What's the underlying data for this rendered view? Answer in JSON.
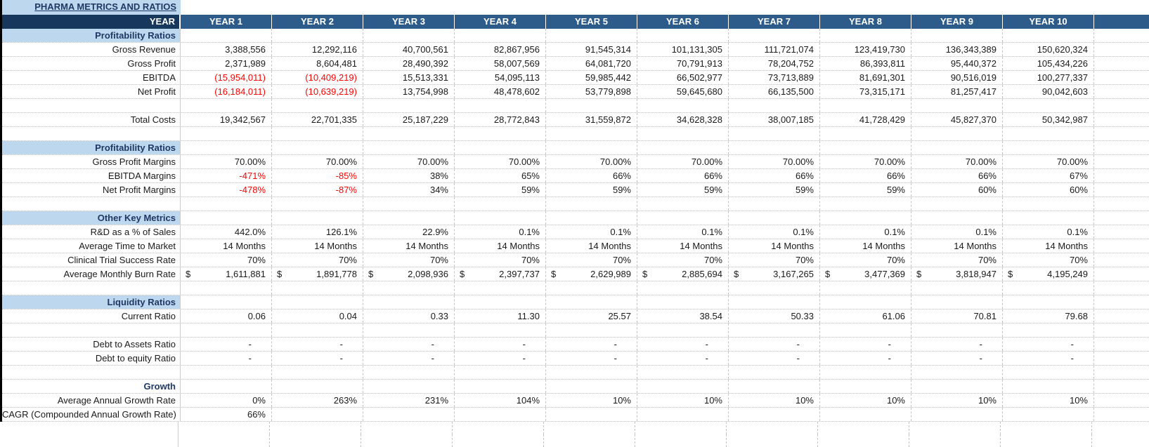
{
  "title": "PHARMA METRICS AND RATIOS",
  "currency_symbol": "$",
  "colors": {
    "header_label_bg": "#17375D",
    "header_year_bg": "#2E5C8A",
    "section_bg": "#BDD7EE",
    "negative_text": "#FF0000",
    "title_text": "#1F3864"
  },
  "header": {
    "label": "YEAR",
    "years": [
      "YEAR 1",
      "YEAR 2",
      "YEAR 3",
      "YEAR 4",
      "YEAR 5",
      "YEAR 6",
      "YEAR 7",
      "YEAR 8",
      "YEAR 9",
      "YEAR 10"
    ]
  },
  "rows": [
    {
      "type": "section",
      "label": "Profitability Ratios"
    },
    {
      "type": "data",
      "label": "Gross Revenue",
      "values": [
        "3,388,556",
        "12,292,116",
        "40,700,561",
        "82,867,956",
        "91,545,314",
        "101,131,305",
        "111,721,074",
        "123,419,730",
        "136,343,389",
        "150,620,324"
      ]
    },
    {
      "type": "data",
      "label": "Gross Profit",
      "values": [
        "2,371,989",
        "8,604,481",
        "28,490,392",
        "58,007,569",
        "64,081,720",
        "70,791,913",
        "78,204,752",
        "86,393,811",
        "95,440,372",
        "105,434,226"
      ]
    },
    {
      "type": "data",
      "label": "EBITDA",
      "values": [
        "(15,954,011)",
        "(10,409,219)",
        "15,513,331",
        "54,095,113",
        "59,985,442",
        "66,502,977",
        "73,713,889",
        "81,691,301",
        "90,516,019",
        "100,277,337"
      ],
      "red": [
        0,
        1
      ]
    },
    {
      "type": "data",
      "label": "Net Profit",
      "values": [
        "(16,184,011)",
        "(10,639,219)",
        "13,754,998",
        "48,478,602",
        "53,779,898",
        "59,645,680",
        "66,135,500",
        "73,315,171",
        "81,257,417",
        "90,042,603"
      ],
      "red": [
        0,
        1
      ]
    },
    {
      "type": "blank"
    },
    {
      "type": "data",
      "label": "Total Costs",
      "values": [
        "19,342,567",
        "22,701,335",
        "25,187,229",
        "28,772,843",
        "31,559,872",
        "34,628,328",
        "38,007,185",
        "41,728,429",
        "45,827,370",
        "50,342,987"
      ]
    },
    {
      "type": "blank"
    },
    {
      "type": "section",
      "label": "Profitability Ratios"
    },
    {
      "type": "data",
      "label": "Gross Profit Margins",
      "values": [
        "70.00%",
        "70.00%",
        "70.00%",
        "70.00%",
        "70.00%",
        "70.00%",
        "70.00%",
        "70.00%",
        "70.00%",
        "70.00%"
      ]
    },
    {
      "type": "data",
      "label": "EBITDA Margins",
      "values": [
        "-471%",
        "-85%",
        "38%",
        "65%",
        "66%",
        "66%",
        "66%",
        "66%",
        "66%",
        "67%"
      ],
      "red": [
        0,
        1
      ]
    },
    {
      "type": "data",
      "label": "Net Profit Margins",
      "values": [
        "-478%",
        "-87%",
        "34%",
        "59%",
        "59%",
        "59%",
        "59%",
        "59%",
        "60%",
        "60%"
      ],
      "red": [
        0,
        1
      ]
    },
    {
      "type": "blank"
    },
    {
      "type": "section",
      "label": "Other Key  Metrics"
    },
    {
      "type": "data",
      "label": "R&D as a % of Sales",
      "values": [
        "442.0%",
        "126.1%",
        "22.9%",
        "0.1%",
        "0.1%",
        "0.1%",
        "0.1%",
        "0.1%",
        "0.1%",
        "0.1%"
      ]
    },
    {
      "type": "data",
      "label": "Average Time to Market",
      "values": [
        "14 Months",
        "14 Months",
        "14 Months",
        "14 Months",
        "14 Months",
        "14 Months",
        "14 Months",
        "14 Months",
        "14 Months",
        "14 Months"
      ]
    },
    {
      "type": "data",
      "label": "Clinical Trial Success Rate",
      "values": [
        "70%",
        "70%",
        "70%",
        "70%",
        "70%",
        "70%",
        "70%",
        "70%",
        "70%",
        "70%"
      ]
    },
    {
      "type": "data",
      "label": "Average Monthly Burn Rate",
      "values": [
        "1,611,881",
        "1,891,778",
        "2,098,936",
        "2,397,737",
        "2,629,989",
        "2,885,694",
        "3,167,265",
        "3,477,369",
        "3,818,947",
        "4,195,249"
      ],
      "dollar": true
    },
    {
      "type": "blank"
    },
    {
      "type": "section",
      "label": "Liquidity Ratios"
    },
    {
      "type": "data",
      "label": "Current Ratio",
      "values": [
        "0.06",
        "0.04",
        "0.33",
        "11.30",
        "25.57",
        "38.54",
        "50.33",
        "61.06",
        "70.81",
        "79.68"
      ]
    },
    {
      "type": "blank"
    },
    {
      "type": "data",
      "label": "Debt to Assets Ratio",
      "values": [
        "-",
        "-",
        "-",
        "-",
        "-",
        "-",
        "-",
        "-",
        "-",
        "-"
      ],
      "dash": true
    },
    {
      "type": "data",
      "label": "Debt to equity Ratio",
      "values": [
        "-",
        "-",
        "-",
        "-",
        "-",
        "-",
        "-",
        "-",
        "-",
        "-"
      ],
      "dash": true
    },
    {
      "type": "blank"
    },
    {
      "type": "section_plain",
      "label": "Growth"
    },
    {
      "type": "data",
      "label": "Average Annual Growth Rate",
      "values": [
        "0%",
        "263%",
        "231%",
        "104%",
        "10%",
        "10%",
        "10%",
        "10%",
        "10%",
        "10%"
      ]
    },
    {
      "type": "data",
      "label": "CAGR (Compounded Annual Growth Rate)",
      "values": [
        "66%",
        "",
        "",
        "",
        "",
        "",
        "",
        "",
        "",
        ""
      ]
    }
  ]
}
